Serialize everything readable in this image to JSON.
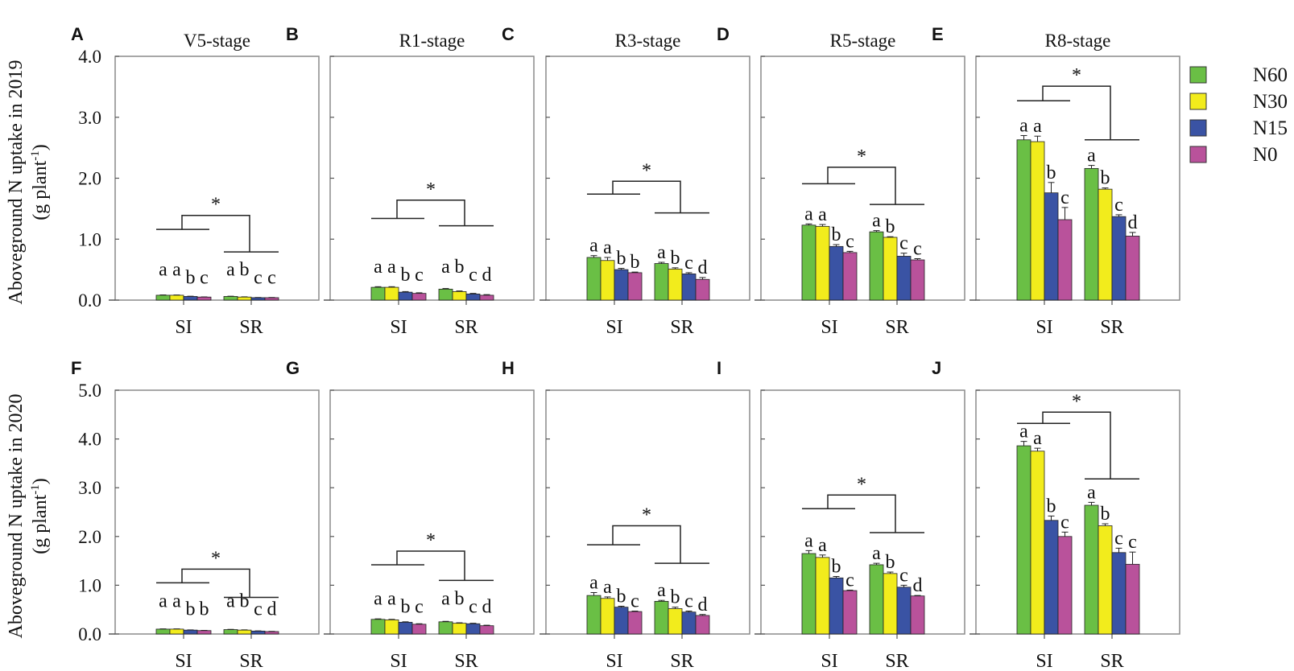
{
  "colors": {
    "N60": "#6abf45",
    "N30": "#f2ec1c",
    "N15": "#3a53a4",
    "N0": "#b9529b"
  },
  "legend": [
    "N60",
    "N30",
    "N15",
    "N0"
  ],
  "y_axis_titles": [
    {
      "line1": "Aboveground N uptake in 2019",
      "line2_pre": "(g plant",
      "line2_sup": "-1",
      "line2_post": ")"
    },
    {
      "line1": "Aboveground N uptake in 2020",
      "line2_pre": "(g plant",
      "line2_sup": "-1",
      "line2_post": ")"
    }
  ],
  "chart_data": [
    {
      "type": "bar",
      "panel": "A",
      "row": 0,
      "title": "V5-stage",
      "categories": [
        "SI",
        "SR"
      ],
      "ylim": [
        0,
        4
      ],
      "yticks": [
        "0.0",
        "1.0",
        "2.0",
        "3.0",
        "4.0"
      ],
      "series": [
        {
          "name": "N60",
          "values": [
            0.08,
            0.06
          ],
          "err": [
            0.005,
            0.004
          ],
          "letters": [
            "a",
            "a"
          ]
        },
        {
          "name": "N30",
          "values": [
            0.08,
            0.05
          ],
          "err": [
            0.004,
            0.004
          ],
          "letters": [
            "a",
            "b"
          ]
        },
        {
          "name": "N15",
          "values": [
            0.06,
            0.04
          ],
          "err": [
            0.004,
            0.003
          ],
          "letters": [
            "b",
            "c"
          ]
        },
        {
          "name": "N0",
          "values": [
            0.05,
            0.04
          ],
          "err": [
            0.003,
            0.003
          ],
          "letters": [
            "c",
            "c"
          ]
        }
      ],
      "significance": {
        "label": "*",
        "bracket_levels": [
          1.16,
          0.79,
          1.39
        ]
      },
      "letter_floor": 0.4
    },
    {
      "type": "bar",
      "panel": "B",
      "row": 0,
      "title": "R1-stage",
      "categories": [
        "SI",
        "SR"
      ],
      "ylim": [
        0,
        4
      ],
      "yticks": [],
      "series": [
        {
          "name": "N60",
          "values": [
            0.21,
            0.18
          ],
          "err": [
            0.01,
            0.01
          ],
          "letters": [
            "a",
            "a"
          ]
        },
        {
          "name": "N30",
          "values": [
            0.21,
            0.14
          ],
          "err": [
            0.01,
            0.01
          ],
          "letters": [
            "a",
            "b"
          ]
        },
        {
          "name": "N15",
          "values": [
            0.13,
            0.1
          ],
          "err": [
            0.01,
            0.01
          ],
          "letters": [
            "b",
            "c"
          ]
        },
        {
          "name": "N0",
          "values": [
            0.11,
            0.08
          ],
          "err": [
            0.01,
            0.01
          ],
          "letters": [
            "c",
            "d"
          ]
        }
      ],
      "significance": {
        "label": "*",
        "bracket_levels": [
          1.34,
          1.22,
          1.64
        ]
      },
      "letter_floor": 0.45
    },
    {
      "type": "bar",
      "panel": "C",
      "row": 0,
      "title": "R3-stage",
      "categories": [
        "SI",
        "SR"
      ],
      "ylim": [
        0,
        4
      ],
      "yticks": [],
      "series": [
        {
          "name": "N60",
          "values": [
            0.7,
            0.6
          ],
          "err": [
            0.03,
            0.02
          ],
          "letters": [
            "a",
            "a"
          ]
        },
        {
          "name": "N30",
          "values": [
            0.65,
            0.51
          ],
          "err": [
            0.05,
            0.02
          ],
          "letters": [
            "a",
            "b"
          ]
        },
        {
          "name": "N15",
          "values": [
            0.5,
            0.43
          ],
          "err": [
            0.02,
            0.02
          ],
          "letters": [
            "b",
            "c"
          ]
        },
        {
          "name": "N0",
          "values": [
            0.45,
            0.34
          ],
          "err": [
            0.01,
            0.03
          ],
          "letters": [
            "b",
            "d"
          ]
        }
      ],
      "significance": {
        "label": "*",
        "bracket_levels": [
          1.74,
          1.43,
          1.95
        ]
      },
      "letter_floor": 0
    },
    {
      "type": "bar",
      "panel": "D",
      "row": 0,
      "title": "R5-stage",
      "categories": [
        "SI",
        "SR"
      ],
      "ylim": [
        0,
        4
      ],
      "yticks": [],
      "series": [
        {
          "name": "N60",
          "values": [
            1.23,
            1.12
          ],
          "err": [
            0.02,
            0.02
          ],
          "letters": [
            "a",
            "a"
          ]
        },
        {
          "name": "N30",
          "values": [
            1.21,
            1.03
          ],
          "err": [
            0.03,
            0.01
          ],
          "letters": [
            "a",
            "b"
          ]
        },
        {
          "name": "N15",
          "values": [
            0.88,
            0.72
          ],
          "err": [
            0.03,
            0.05
          ],
          "letters": [
            "b",
            "c"
          ]
        },
        {
          "name": "N0",
          "values": [
            0.78,
            0.66
          ],
          "err": [
            0.02,
            0.02
          ],
          "letters": [
            "c",
            "c"
          ]
        }
      ],
      "significance": {
        "label": "*",
        "bracket_levels": [
          1.91,
          1.57,
          2.18
        ]
      },
      "letter_floor": 0
    },
    {
      "type": "bar",
      "panel": "E",
      "row": 0,
      "title": "R8-stage",
      "categories": [
        "SI",
        "SR"
      ],
      "ylim": [
        0,
        4
      ],
      "yticks": [],
      "series": [
        {
          "name": "N60",
          "values": [
            2.63,
            2.16
          ],
          "err": [
            0.07,
            0.05
          ],
          "letters": [
            "a",
            "a"
          ]
        },
        {
          "name": "N30",
          "values": [
            2.6,
            1.82
          ],
          "err": [
            0.09,
            0.02
          ],
          "letters": [
            "a",
            "b"
          ]
        },
        {
          "name": "N15",
          "values": [
            1.76,
            1.37
          ],
          "err": [
            0.17,
            0.03
          ],
          "letters": [
            "b",
            "c"
          ]
        },
        {
          "name": "N0",
          "values": [
            1.32,
            1.05
          ],
          "err": [
            0.2,
            0.06
          ],
          "letters": [
            "c",
            "d"
          ]
        }
      ],
      "significance": {
        "label": "*",
        "bracket_levels": [
          3.27,
          2.63,
          3.51
        ]
      },
      "letter_floor": 0
    },
    {
      "type": "bar",
      "panel": "F",
      "row": 1,
      "title": "",
      "categories": [
        "SI",
        "SR"
      ],
      "ylim": [
        0,
        5
      ],
      "yticks": [
        "0.0",
        "1.0",
        "2.0",
        "3.0",
        "4.0",
        "5.0"
      ],
      "series": [
        {
          "name": "N60",
          "values": [
            0.1,
            0.09
          ],
          "err": [
            0.005,
            0.005
          ],
          "letters": [
            "a",
            "a"
          ]
        },
        {
          "name": "N30",
          "values": [
            0.1,
            0.08
          ],
          "err": [
            0.005,
            0.005
          ],
          "letters": [
            "a",
            "b"
          ]
        },
        {
          "name": "N15",
          "values": [
            0.08,
            0.06
          ],
          "err": [
            0.004,
            0.004
          ],
          "letters": [
            "b",
            "c"
          ]
        },
        {
          "name": "N0",
          "values": [
            0.07,
            0.05
          ],
          "err": [
            0.004,
            0.004
          ],
          "letters": [
            "b",
            "d"
          ]
        }
      ],
      "significance": {
        "label": "*",
        "bracket_levels": [
          1.05,
          0.75,
          1.33
        ]
      },
      "letter_floor": 0.55
    },
    {
      "type": "bar",
      "panel": "G",
      "row": 1,
      "title": "",
      "categories": [
        "SI",
        "SR"
      ],
      "ylim": [
        0,
        5
      ],
      "yticks": [],
      "series": [
        {
          "name": "N60",
          "values": [
            0.3,
            0.25
          ],
          "err": [
            0.01,
            0.01
          ],
          "letters": [
            "a",
            "a"
          ]
        },
        {
          "name": "N30",
          "values": [
            0.29,
            0.22
          ],
          "err": [
            0.01,
            0.01
          ],
          "letters": [
            "a",
            "b"
          ]
        },
        {
          "name": "N15",
          "values": [
            0.24,
            0.21
          ],
          "err": [
            0.01,
            0.01
          ],
          "letters": [
            "b",
            "c"
          ]
        },
        {
          "name": "N0",
          "values": [
            0.2,
            0.17
          ],
          "err": [
            0.01,
            0.01
          ],
          "letters": [
            "c",
            "d"
          ]
        }
      ],
      "significance": {
        "label": "*",
        "bracket_levels": [
          1.42,
          1.1,
          1.7
        ]
      },
      "letter_floor": 0.6
    },
    {
      "type": "bar",
      "panel": "H",
      "row": 1,
      "title": "",
      "categories": [
        "SI",
        "SR"
      ],
      "ylim": [
        0,
        5
      ],
      "yticks": [],
      "series": [
        {
          "name": "N60",
          "values": [
            0.79,
            0.67
          ],
          "err": [
            0.06,
            0.02
          ],
          "letters": [
            "a",
            "a"
          ]
        },
        {
          "name": "N30",
          "values": [
            0.73,
            0.52
          ],
          "err": [
            0.03,
            0.03
          ],
          "letters": [
            "a",
            "b"
          ]
        },
        {
          "name": "N15",
          "values": [
            0.55,
            0.45
          ],
          "err": [
            0.02,
            0.02
          ],
          "letters": [
            "b",
            "c"
          ]
        },
        {
          "name": "N0",
          "values": [
            0.46,
            0.38
          ],
          "err": [
            0.01,
            0.02
          ],
          "letters": [
            "c",
            "d"
          ]
        }
      ],
      "significance": {
        "label": "*",
        "bracket_levels": [
          1.83,
          1.45,
          2.22
        ]
      },
      "letter_floor": 0
    },
    {
      "type": "bar",
      "panel": "I",
      "row": 1,
      "title": "",
      "categories": [
        "SI",
        "SR"
      ],
      "ylim": [
        0,
        5
      ],
      "yticks": [],
      "series": [
        {
          "name": "N60",
          "values": [
            1.65,
            1.42
          ],
          "err": [
            0.06,
            0.03
          ],
          "letters": [
            "a",
            "a"
          ]
        },
        {
          "name": "N30",
          "values": [
            1.57,
            1.24
          ],
          "err": [
            0.05,
            0.03
          ],
          "letters": [
            "a",
            "b"
          ]
        },
        {
          "name": "N15",
          "values": [
            1.15,
            0.96
          ],
          "err": [
            0.03,
            0.04
          ],
          "letters": [
            "b",
            "c"
          ]
        },
        {
          "name": "N0",
          "values": [
            0.89,
            0.78
          ],
          "err": [
            0.01,
            0.01
          ],
          "letters": [
            "c",
            "d"
          ]
        }
      ],
      "significance": {
        "label": "*",
        "bracket_levels": [
          2.57,
          2.08,
          2.85
        ]
      },
      "letter_floor": 0
    },
    {
      "type": "bar",
      "panel": "J",
      "row": 1,
      "title": "",
      "categories": [
        "SI",
        "SR"
      ],
      "ylim": [
        0,
        5
      ],
      "yticks": [],
      "series": [
        {
          "name": "N60",
          "values": [
            3.86,
            2.64
          ],
          "err": [
            0.09,
            0.06
          ],
          "letters": [
            "a",
            "a"
          ]
        },
        {
          "name": "N30",
          "values": [
            3.75,
            2.22
          ],
          "err": [
            0.06,
            0.04
          ],
          "letters": [
            "a",
            "b"
          ]
        },
        {
          "name": "N15",
          "values": [
            2.33,
            1.67
          ],
          "err": [
            0.09,
            0.09
          ],
          "letters": [
            "b",
            "c"
          ]
        },
        {
          "name": "N0",
          "values": [
            2.0,
            1.43
          ],
          "err": [
            0.09,
            0.25
          ],
          "letters": [
            "c",
            "c"
          ]
        }
      ],
      "significance": {
        "label": "*",
        "bracket_levels": [
          4.32,
          3.18,
          4.55
        ]
      },
      "letter_floor": 0
    }
  ]
}
